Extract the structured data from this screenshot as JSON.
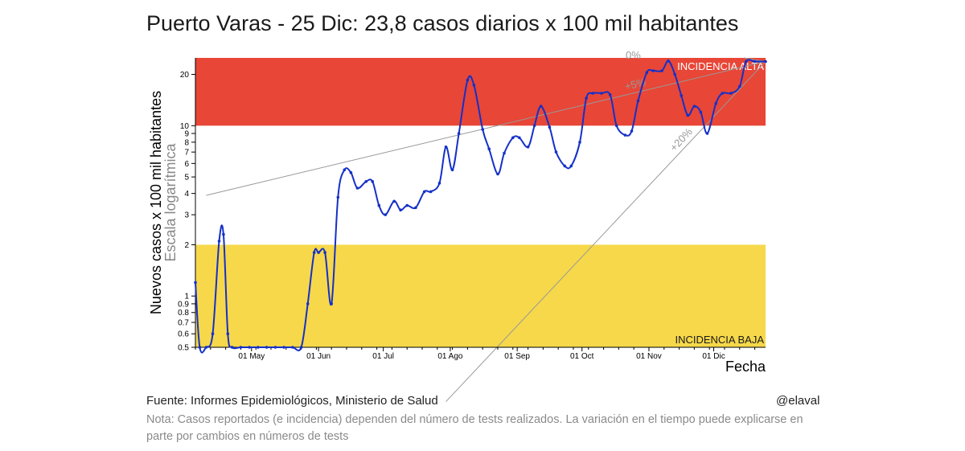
{
  "title": "Puerto Varas - 25 Dic: 23,8 casos diarios x 100 mil habitantes",
  "footer": {
    "source": "Fuente: Informes Epidemiológicos, Ministerio de Salud",
    "author": "@elaval",
    "note": "Nota: Casos reportados (e incidencia) dependen del número de tests realizados. La variación en el tiempo puede explicarse en parte por cambios en números de tests"
  },
  "colors": {
    "line": "#1530c8",
    "high_band": "#e84637",
    "low_band": "#f6d84a",
    "reference": "#999999"
  },
  "chart_data": {
    "type": "line",
    "title": "Puerto Varas - 25 Dic: 23,8 casos diarios x 100 mil habitantes",
    "xlabel": "Fecha",
    "ylabel": "Nuevos casos x 100 mil habitantes",
    "ylabel2": "Escala logarítmica",
    "yscale": "log",
    "ylim": [
      0.5,
      25
    ],
    "xlim": [
      "2020-04-05",
      "2020-12-25"
    ],
    "x_ticks": [
      {
        "date": "2020-05-01",
        "label": "01 May"
      },
      {
        "date": "2020-06-01",
        "label": "01 Jun"
      },
      {
        "date": "2020-07-01",
        "label": "01 Jul"
      },
      {
        "date": "2020-08-01",
        "label": "01 Ago"
      },
      {
        "date": "2020-09-01",
        "label": "01 Sep"
      },
      {
        "date": "2020-10-01",
        "label": "01 Oct"
      },
      {
        "date": "2020-11-01",
        "label": "01 Nov"
      },
      {
        "date": "2020-12-01",
        "label": "01 Dic"
      }
    ],
    "y_ticks": [
      0.5,
      0.6,
      0.7,
      0.8,
      0.9,
      1,
      2,
      3,
      4,
      5,
      6,
      7,
      8,
      9,
      10,
      20
    ],
    "bands": [
      {
        "label": "INCIDENCIA ALTA",
        "from": 10,
        "to": 25
      },
      {
        "label": "INCIDENCIA BAJA",
        "from": 0.5,
        "to": 2
      }
    ],
    "reference_lines": [
      {
        "label": "0%",
        "x": [
          "2020-12-15",
          "2020-12-25"
        ],
        "y": [
          25,
          23.8
        ]
      },
      {
        "label": "+5%",
        "x": [
          "2020-04-10",
          "2020-12-25"
        ],
        "y": [
          3.9,
          23.8
        ]
      },
      {
        "label": "+20%",
        "x": [
          "2020-07-30",
          "2020-12-25"
        ],
        "y": [
          0.24,
          23.8
        ]
      }
    ],
    "series": [
      {
        "x": [
          "2020-04-05",
          "2020-04-07",
          "2020-04-10",
          "2020-04-13",
          "2020-04-16",
          "2020-04-18",
          "2020-04-20",
          "2020-04-22",
          "2020-04-26",
          "2020-04-30",
          "2020-05-04",
          "2020-05-08",
          "2020-05-12",
          "2020-05-16",
          "2020-05-20",
          "2020-05-24",
          "2020-05-27",
          "2020-05-30",
          "2020-06-01",
          "2020-06-04",
          "2020-06-07",
          "2020-06-10",
          "2020-06-13",
          "2020-06-16",
          "2020-06-19",
          "2020-06-23",
          "2020-06-26",
          "2020-06-29",
          "2020-07-02",
          "2020-07-06",
          "2020-07-09",
          "2020-07-12",
          "2020-07-16",
          "2020-07-20",
          "2020-07-23",
          "2020-07-27",
          "2020-07-30",
          "2020-08-02",
          "2020-08-05",
          "2020-08-09",
          "2020-08-12",
          "2020-08-16",
          "2020-08-19",
          "2020-08-23",
          "2020-08-26",
          "2020-08-30",
          "2020-09-02",
          "2020-09-06",
          "2020-09-09",
          "2020-09-12",
          "2020-09-16",
          "2020-09-19",
          "2020-09-23",
          "2020-09-26",
          "2020-09-30",
          "2020-10-03",
          "2020-10-06",
          "2020-10-10",
          "2020-10-14",
          "2020-10-17",
          "2020-10-21",
          "2020-10-24",
          "2020-10-27",
          "2020-10-31",
          "2020-11-03",
          "2020-11-07",
          "2020-11-10",
          "2020-11-13",
          "2020-11-16",
          "2020-11-19",
          "2020-11-22",
          "2020-11-25",
          "2020-11-28",
          "2020-12-02",
          "2020-12-05",
          "2020-12-09",
          "2020-12-13",
          "2020-12-16",
          "2020-12-20",
          "2020-12-25"
        ],
        "values": [
          1.2,
          0.5,
          0.5,
          0.6,
          2.1,
          2.3,
          0.6,
          0.5,
          0.5,
          0.5,
          0.5,
          0.5,
          0.5,
          0.5,
          0.5,
          0.5,
          0.9,
          1.8,
          1.8,
          1.8,
          0.9,
          3.8,
          5.5,
          5.3,
          4.3,
          4.7,
          4.7,
          3.4,
          3.0,
          3.6,
          3.2,
          3.4,
          3.3,
          4.1,
          4.1,
          4.6,
          7.5,
          5.5,
          9.0,
          18.5,
          17.3,
          9.5,
          7.3,
          5.2,
          6.9,
          8.5,
          8.5,
          7.5,
          10.0,
          13.0,
          9.8,
          7.0,
          5.8,
          5.8,
          8.0,
          14.5,
          15.5,
          15.5,
          15.2,
          10.0,
          8.8,
          9.3,
          14.0,
          20.5,
          21.0,
          21.0,
          24.0,
          20.0,
          15.0,
          11.5,
          13.0,
          12.0,
          9.0,
          13.5,
          15.5,
          15.5,
          17.0,
          23.8,
          23.8,
          23.8
        ]
      }
    ]
  }
}
